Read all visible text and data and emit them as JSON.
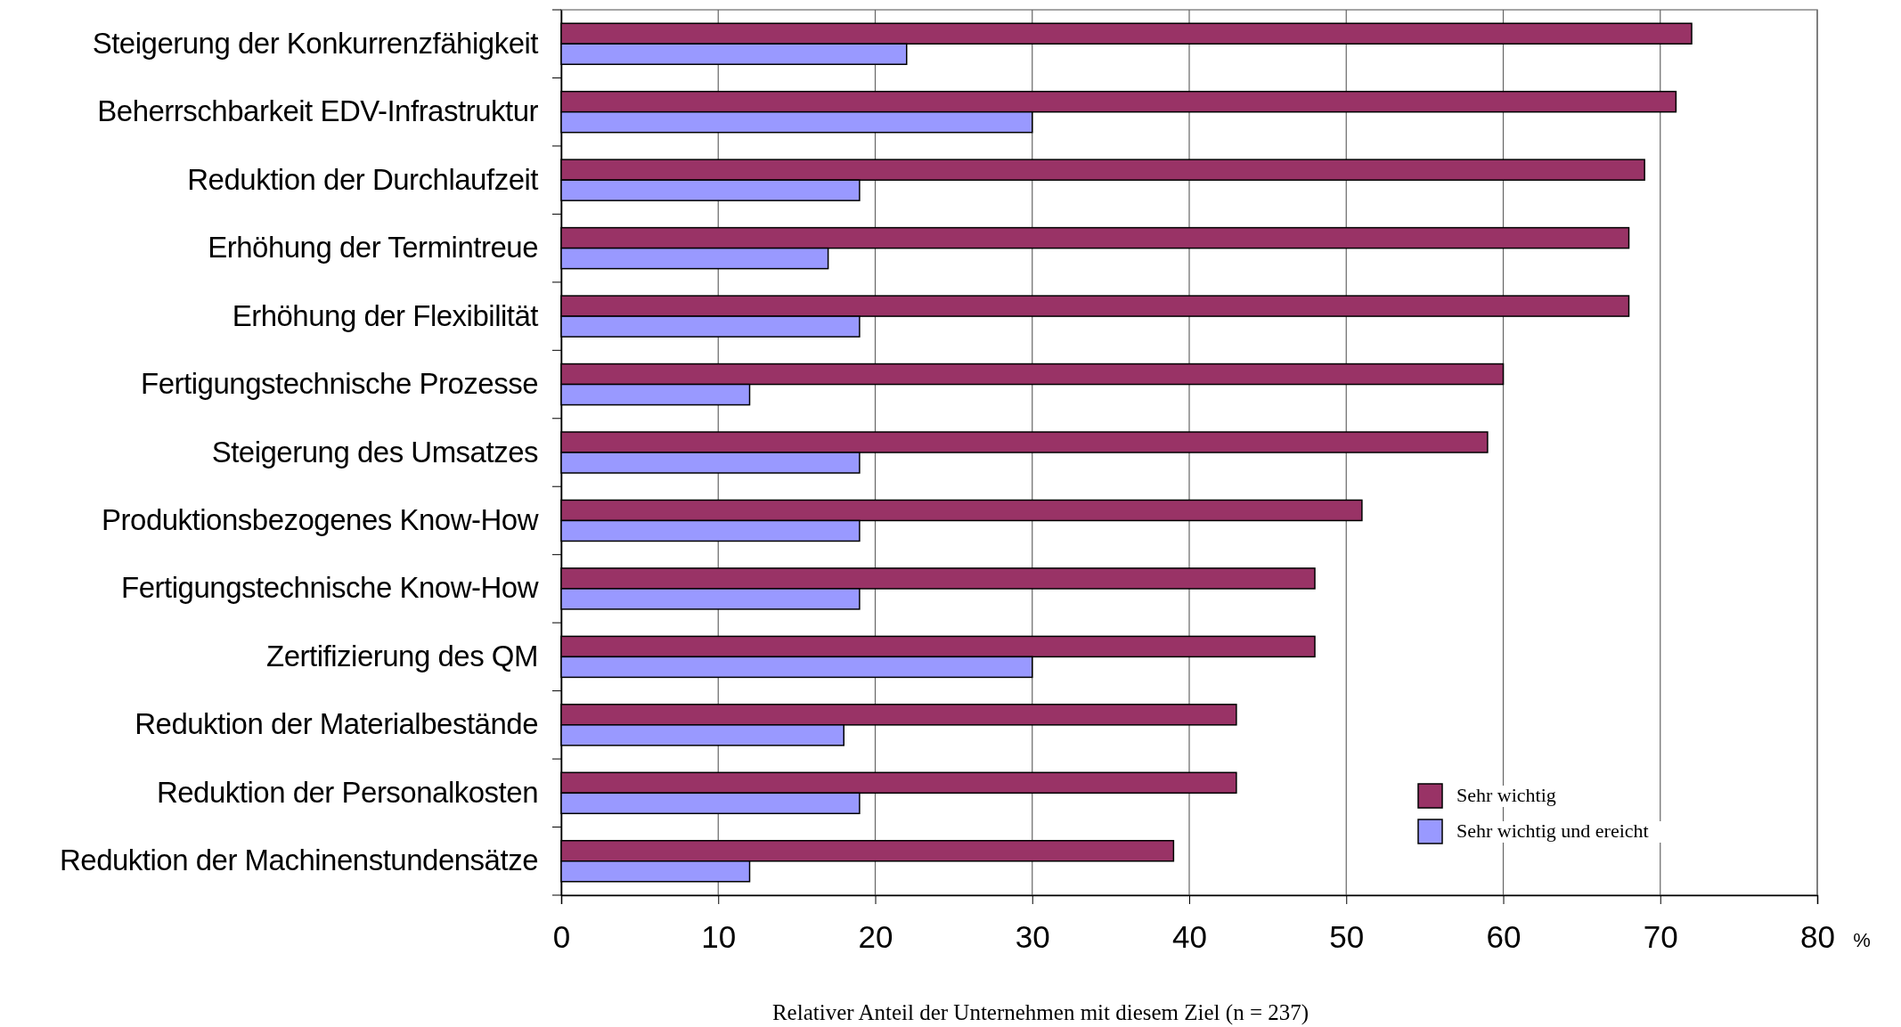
{
  "chart_data": {
    "type": "bar",
    "orientation": "horizontal",
    "xlabel": "Relativer Anteil der Unternehmen mit diesem Ziel (n = 237)",
    "categories": [
      "Steigerung der Konkurrenzfähigkeit",
      "Beherrschbarkeit EDV-Infrastruktur",
      "Reduktion der Durchlaufzeit",
      "Erhöhung der Termintreue",
      "Erhöhung der Flexibilität",
      "Fertigungstechnische Prozesse",
      "Steigerung des Umsatzes",
      "Produktionsbezogenes Know-How",
      "Fertigungstechnische Know-How",
      "Zertifizierung des QM",
      "Reduktion der Materialbestände",
      "Reduktion der Personalkosten",
      "Reduktion der Machinenstundensätze"
    ],
    "series": [
      {
        "name": "Sehr wichtig",
        "color": "#993366",
        "values": [
          72,
          71,
          69,
          68,
          68,
          60,
          59,
          51,
          48,
          48,
          43,
          43,
          39
        ]
      },
      {
        "name": "Sehr wichtig und ereicht",
        "color": "#9999ff",
        "values": [
          22,
          30,
          19,
          17,
          19,
          12,
          19,
          19,
          19,
          30,
          18,
          19,
          12
        ]
      }
    ],
    "xlim": [
      0,
      80
    ],
    "xticks": [
      0,
      10,
      20,
      30,
      40,
      50,
      60,
      70,
      80
    ],
    "grid": "x",
    "legend": "bottom right",
    "annotations": [
      "%"
    ]
  }
}
